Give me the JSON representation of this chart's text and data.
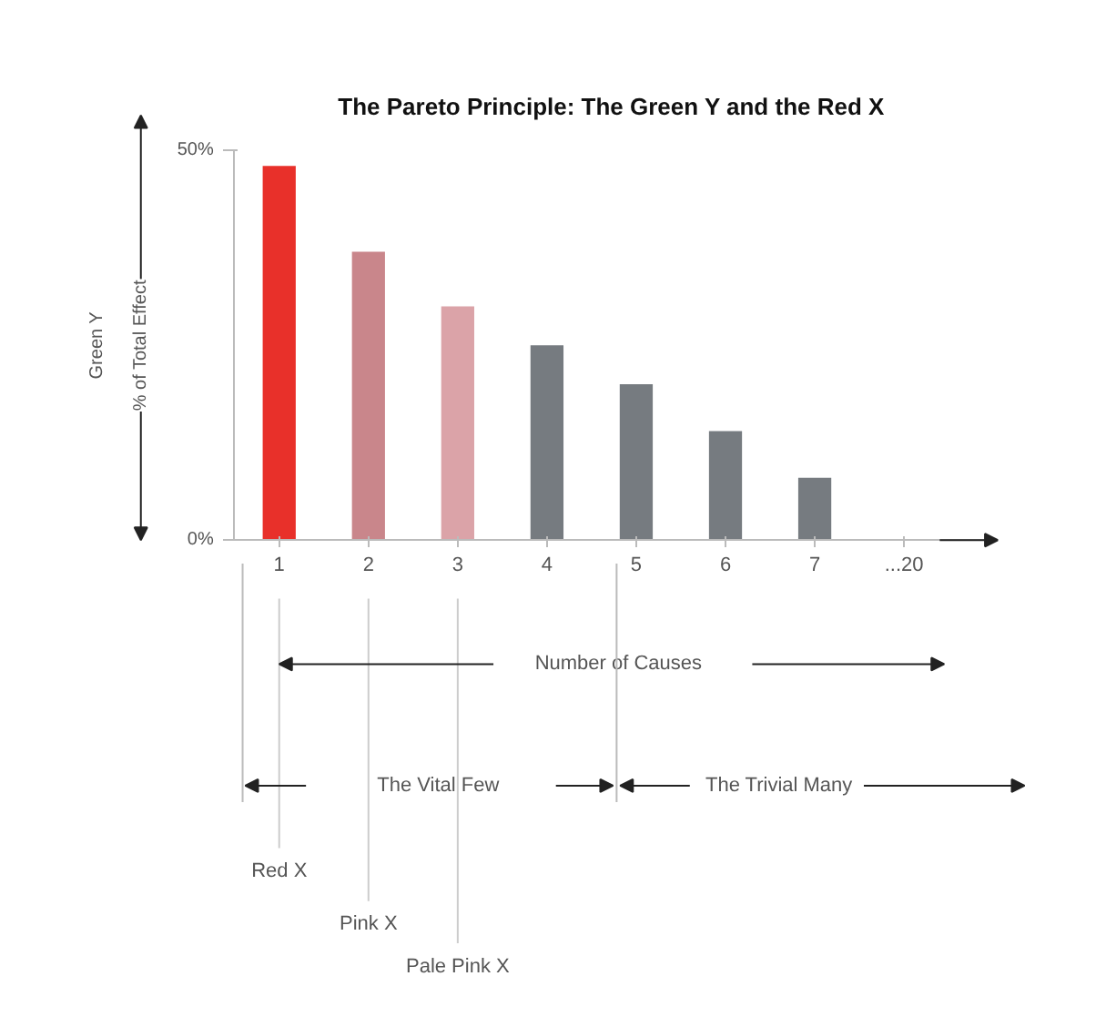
{
  "chart_data": {
    "type": "bar",
    "title": "The Pareto Principle:  The Green Y and the Red X",
    "xlabel": "Number of Causes",
    "ylabel": "% of Total Effect",
    "categories": [
      "1",
      "2",
      "3",
      "4",
      "5",
      "6",
      "7",
      "...20"
    ],
    "values": [
      48,
      37,
      30,
      25,
      20,
      14,
      8,
      null
    ],
    "colors": [
      "#e8302a",
      "#c9868b",
      "#dba3a8",
      "#767b80",
      "#767b80",
      "#767b80",
      "#767b80",
      "#767b80"
    ],
    "ylim": [
      0,
      50
    ],
    "yticks": [
      {
        "value": 0,
        "label": "0%"
      },
      {
        "value": 50,
        "label": "50%"
      }
    ],
    "annotations": [
      "Green Y",
      "The Vital Few",
      "The Trivial Many",
      {
        "text": "Red X",
        "x": "1"
      },
      {
        "text": "Pink X",
        "x": "2"
      },
      {
        "text": "Pale Pink X",
        "x": "3"
      }
    ]
  }
}
